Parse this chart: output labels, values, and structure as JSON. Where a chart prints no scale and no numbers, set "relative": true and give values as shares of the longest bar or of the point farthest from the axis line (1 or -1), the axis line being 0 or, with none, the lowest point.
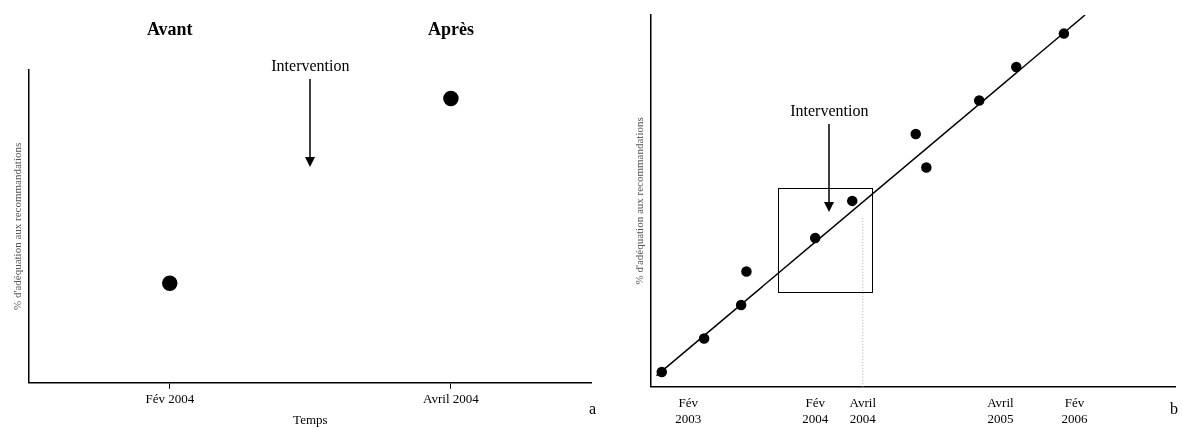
{
  "chart_data": [
    {
      "type": "scatter",
      "ylabel": "% d'adéquation aux recommandations",
      "xlabel": "Temps",
      "annotations": [
        "Avant",
        "Après",
        "Intervention",
        "a"
      ],
      "categories": [
        "Fév 2004",
        "Avril 2004"
      ],
      "values": [
        0.35,
        1
      ],
      "color": "#000000",
      "relative": true,
      "marker": "circle"
    },
    {
      "type": "scatter",
      "ylabel": "% d'adéquation aux recommandations",
      "annotations": [
        "Intervention",
        "b"
      ],
      "categories": [
        null,
        null,
        null,
        null,
        null,
        null,
        null,
        "Fév 2003",
        null,
        null,
        null,
        null,
        null,
        null,
        null,
        null,
        null,
        null,
        null,
        null,
        null,
        null,
        null,
        null,
        null,
        null,
        null,
        null,
        null,
        null,
        null,
        "Fév 2004",
        null,
        null,
        null,
        null,
        null,
        null,
        null,
        null,
        "Avril 2004",
        null,
        null,
        null,
        null,
        null,
        null,
        null,
        null,
        null,
        null,
        null,
        null,
        null,
        null,
        null,
        null,
        null,
        null,
        null,
        null,
        null,
        null,
        null,
        null,
        null,
        "Avril 2005",
        null,
        null,
        null,
        null,
        null,
        null,
        null,
        null,
        null,
        null,
        null,
        null,
        null,
        "Fév 2006",
        null,
        null,
        null,
        null,
        null,
        null,
        null,
        null,
        null,
        null,
        null,
        null,
        null,
        null,
        null,
        null,
        null,
        null,
        null
      ],
      "series": [
        {
          "color": "#000000",
          "values": [
            null,
            null,
            0.04,
            null,
            null,
            null,
            null,
            null,
            null,
            null,
            0.13,
            null,
            null,
            null,
            null,
            null,
            null,
            0.22,
            0.31,
            null,
            null,
            null,
            null,
            null,
            null,
            null,
            null,
            null,
            null,
            null,
            null,
            0.4,
            null,
            null,
            null,
            null,
            null,
            null,
            0.5,
            null,
            null,
            null,
            null,
            null,
            null,
            null,
            null,
            null,
            null,
            null,
            0.68,
            null,
            0.59,
            null,
            null,
            null,
            null,
            null,
            null,
            null,
            null,
            null,
            0.77,
            null,
            null,
            null,
            null,
            null,
            null,
            0.86,
            null,
            null,
            null,
            null,
            null,
            null,
            null,
            null,
            0.95,
            null,
            null,
            null,
            null,
            null,
            null,
            null,
            null,
            null,
            null,
            null,
            null,
            null,
            null,
            null,
            null,
            null,
            null,
            null,
            null,
            null
          ]
        },
        {
          "type": "line",
          "color": "#000000",
          "marker": "none",
          "values": [
            null,
            0.03,
            null,
            null,
            null,
            null,
            null,
            null,
            null,
            null,
            null,
            null,
            null,
            null,
            null,
            null,
            null,
            null,
            null,
            null,
            null,
            null,
            null,
            null,
            null,
            null,
            null,
            null,
            null,
            null,
            null,
            null,
            null,
            null,
            null,
            null,
            null,
            null,
            null,
            null,
            null,
            null,
            null,
            null,
            null,
            null,
            null,
            null,
            null,
            null,
            null,
            null,
            null,
            null,
            null,
            null,
            null,
            null,
            null,
            null,
            null,
            null,
            null,
            null,
            null,
            null,
            null,
            null,
            null,
            null,
            null,
            null,
            null,
            null,
            null,
            null,
            null,
            null,
            null,
            null,
            null,
            null,
            1,
            null,
            null,
            null,
            null,
            null,
            null,
            null,
            null,
            null,
            null,
            null,
            null,
            null,
            null,
            null,
            null,
            null
          ]
        }
      ],
      "relative": true,
      "ref_lines": [
        {
          "axis": "x",
          "value": "Avril 2004",
          "color": "#aaaaaa",
          "line_style": "dotted"
        }
      ],
      "marker": "circle"
    }
  ]
}
